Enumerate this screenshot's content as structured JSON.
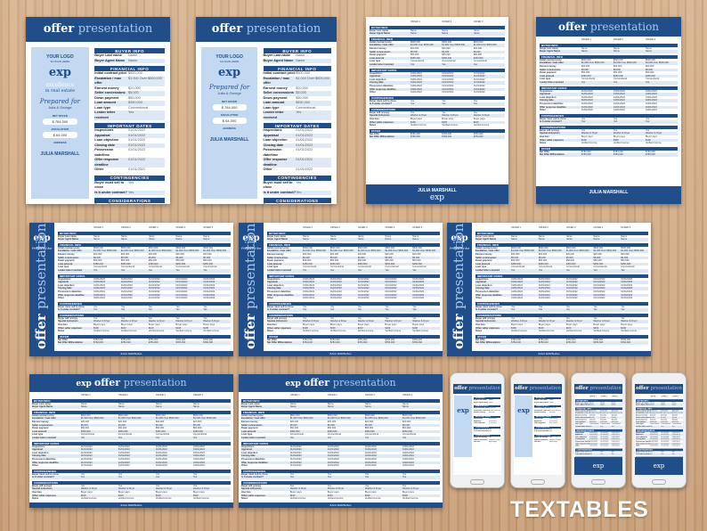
{
  "title": {
    "offer": "offer",
    "presentation": "presentation"
  },
  "sidebar": {
    "logo": "YOUR LOGO",
    "slogan": "SLOGAN HERE",
    "brokerage": "exp",
    "tagline1": "excellence",
    "tagline2": "in real estate",
    "prepared": "Prepared for",
    "clients": "Julia & George",
    "net_offer_label": "NET OFFER",
    "net_offer": "$ 784,000",
    "escalation_label": "ESCALATION",
    "escalation": "$ 64,000",
    "address_label": "ADDRESS",
    "agent": "JULIA MARSHALL"
  },
  "sections": [
    {
      "title": "BUYER INFO",
      "rows": [
        [
          "Buyer Last name",
          "Name"
        ],
        [
          "Buyer Agent Name",
          "Name"
        ]
      ]
    },
    {
      "title": "FINANCIAL INFO",
      "rows": [
        [
          "Initial contract price",
          "$500,000"
        ],
        [
          "Escalation / max offer",
          "$1,000 Over $500,000"
        ],
        [
          "Earnest money",
          "$20,000"
        ],
        [
          "Seller concessions",
          "$5,000"
        ],
        [
          "Down payment",
          "$50,000"
        ],
        [
          "Loan amount",
          "$450,000"
        ],
        [
          "Loan type",
          "Conventional"
        ],
        [
          "Lender letter received",
          "Yes"
        ]
      ]
    },
    {
      "title": "IMPORTANT DATES",
      "rows": [
        [
          "Inspections",
          "01/01/2022"
        ],
        [
          "Appraisal",
          "01/01/2022"
        ],
        [
          "Loan objection",
          "01/01/2022"
        ],
        [
          "Closing date",
          "01/01/2022"
        ],
        [
          "Possession date/time",
          "01/01/2022"
        ],
        [
          "Offer response deadline",
          "01/01/2022"
        ],
        [
          "Other",
          "01/01/2022"
        ]
      ]
    },
    {
      "title": "CONTINGENCIES",
      "rows": [
        [
          "Buyer must sell to close",
          "Yes"
        ],
        [
          "Is it under contract?",
          "Yes"
        ]
      ]
    },
    {
      "title": "CONSIDERATIONS",
      "rows": [
        [
          "Buyer will occupy",
          "Yes"
        ],
        [
          "Special inclusions",
          "Washer & Dryer"
        ],
        [
          "Hoa fees",
          "Buyer pays"
        ],
        [
          "Other seller expenses",
          "$100"
        ],
        [
          "Notes",
          "Verified income"
        ]
      ]
    }
  ],
  "offer_columns": [
    "OFFER 1",
    "OFFER 2",
    "OFFER 3",
    "OFFER 4",
    "OFFER 5"
  ],
  "offer_section": {
    "title": "OFFER",
    "rows": [
      [
        "Net Offer",
        "$784,000"
      ],
      [
        "Net Offer W/Escalation",
        "$784,000"
      ]
    ]
  },
  "prepared_for": "Prepared for",
  "brand_label": "TEXTABLES",
  "colors": {
    "primary": "#1f4e8a",
    "light": "#c3d8f1",
    "accent": "#a9c8ee"
  }
}
